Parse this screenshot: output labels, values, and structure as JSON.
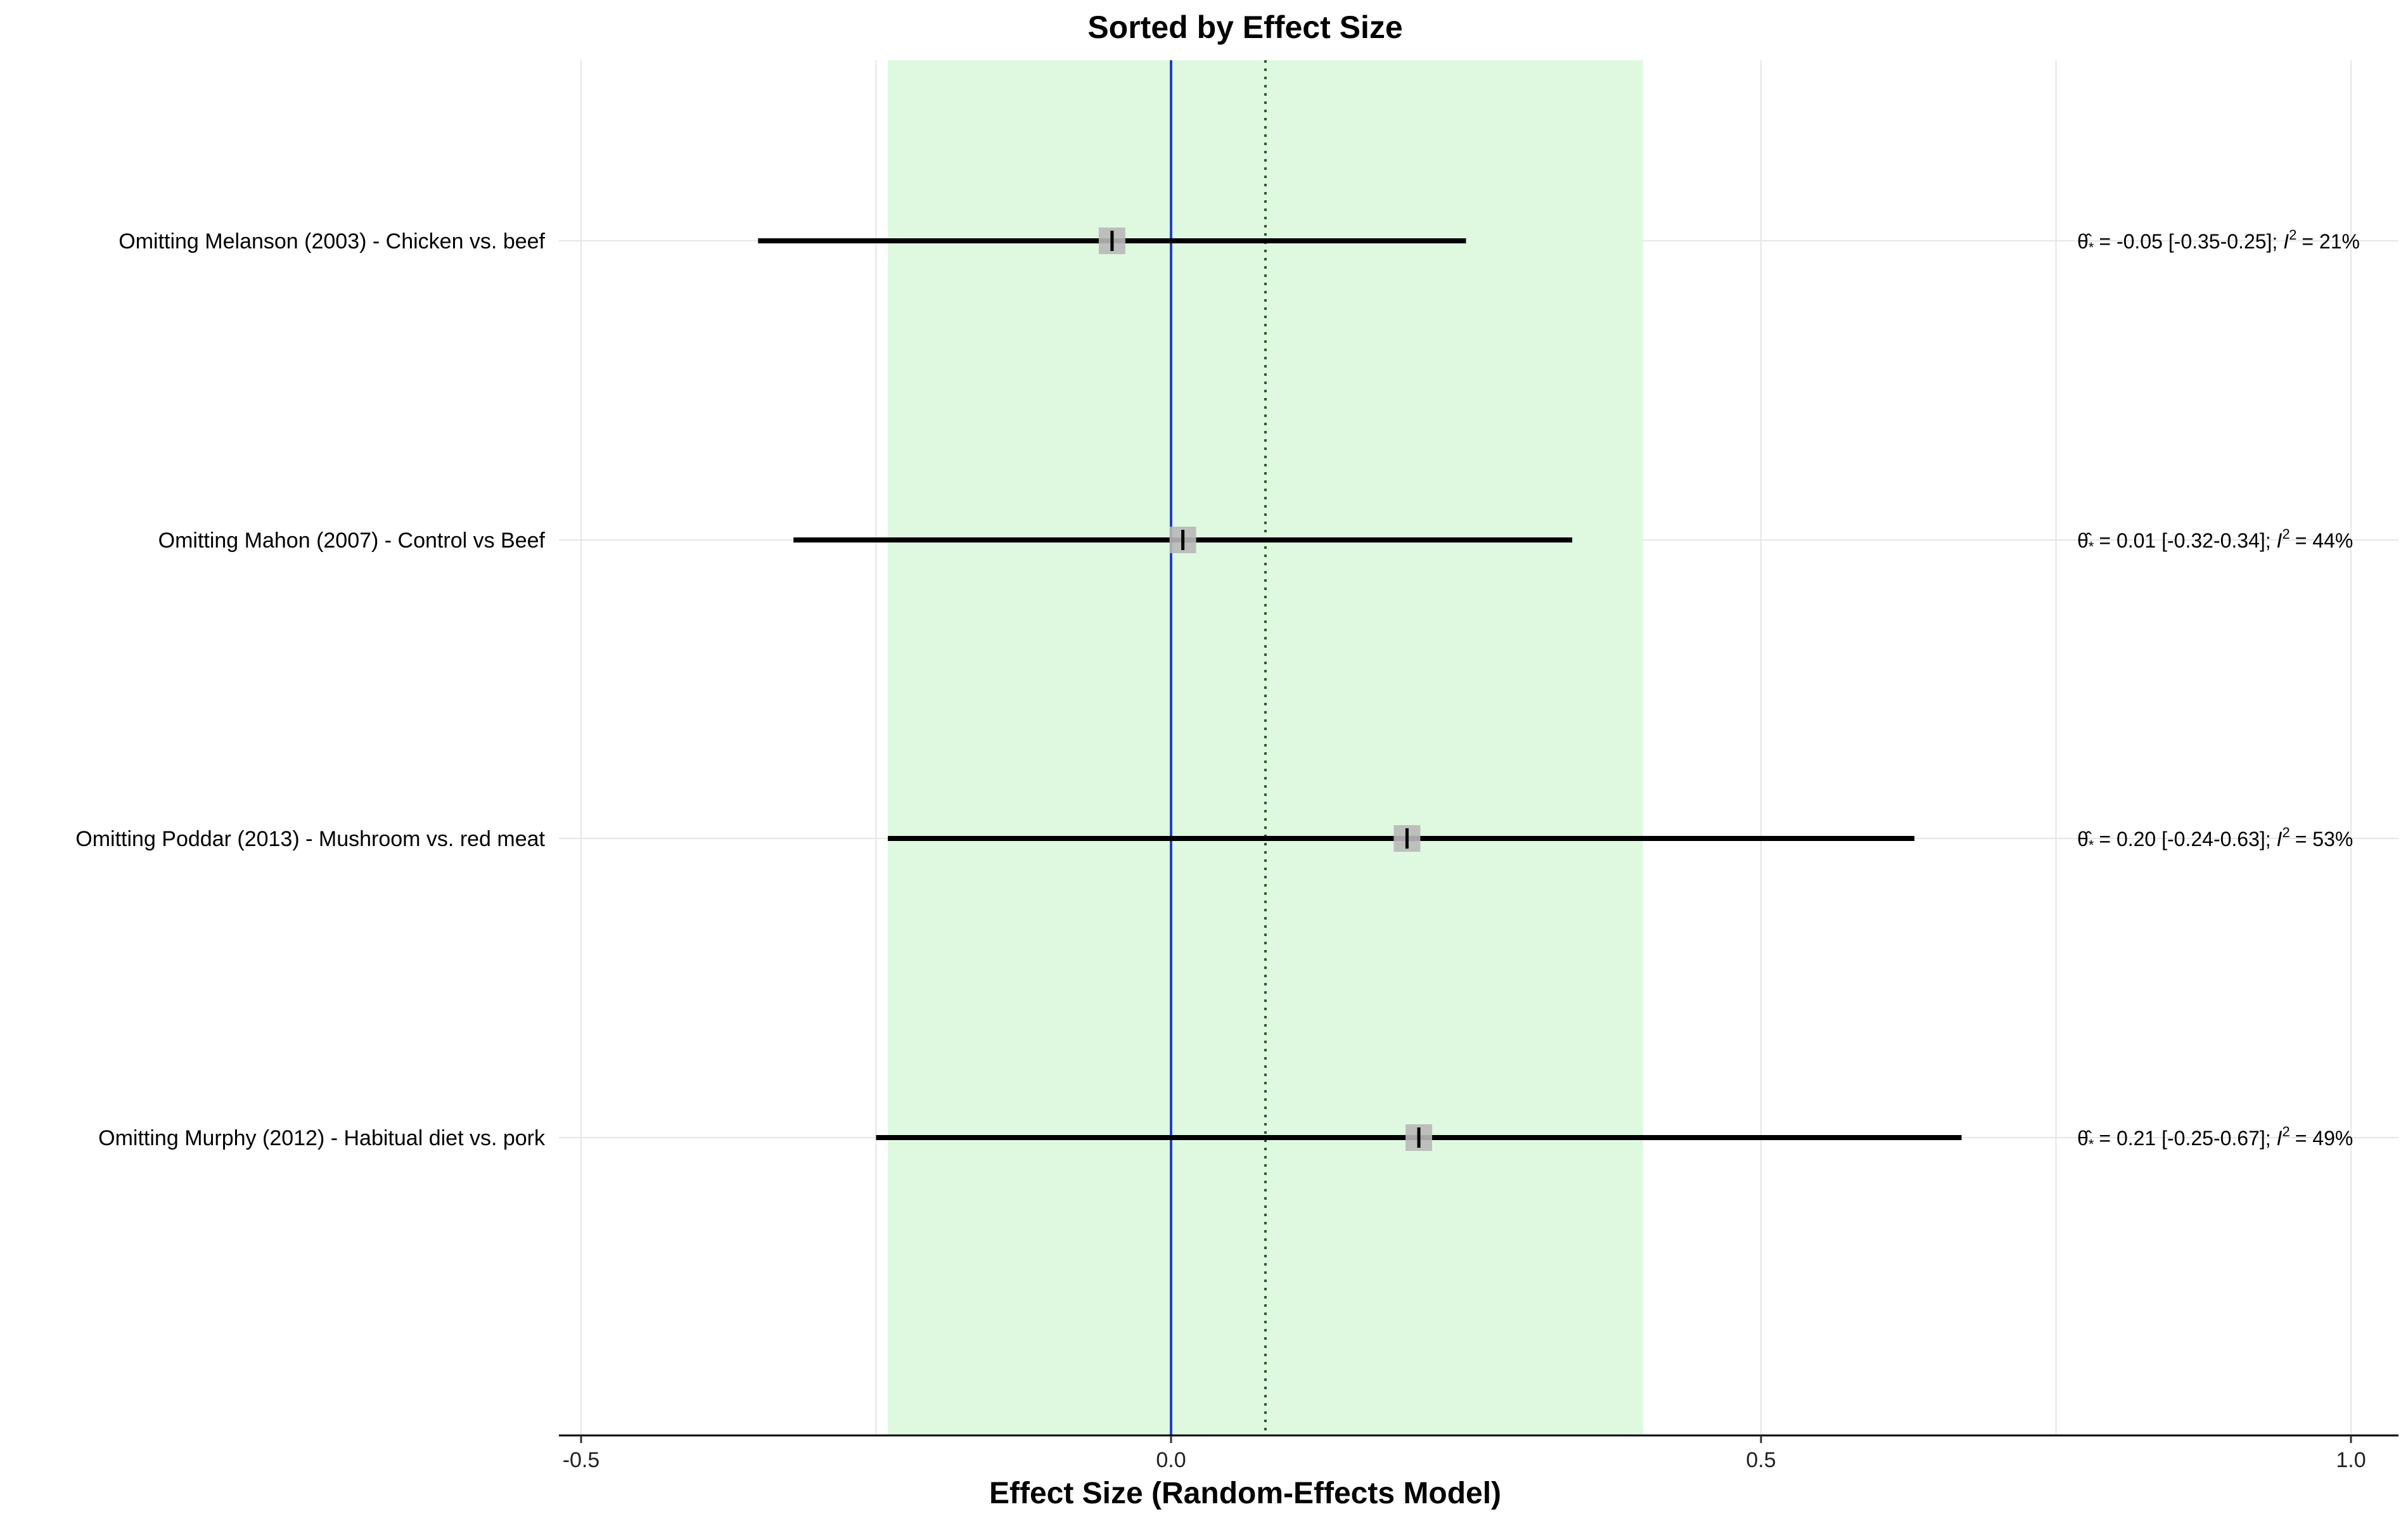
{
  "chart_data": {
    "type": "forest",
    "title": "Sorted by Effect Size",
    "xlabel": "Effect Size (Random-Effects Model)",
    "xlim": [
      -0.52,
      1.04
    ],
    "x_ticks": [
      -0.5,
      0.0,
      0.5,
      1.0
    ],
    "x_tick_labels": [
      "-0.5",
      "0.0",
      "0.5",
      "1.0"
    ],
    "grid": true,
    "pooled_interval": {
      "low": -0.24,
      "high": 0.4,
      "color": "#dff9e0"
    },
    "pooled_estimate": 0.08,
    "null_line": 0.0,
    "null_line_color": "#1f3fcc",
    "rows": [
      {
        "label": "Omitting Melanson (2003) - Chicken vs. beef",
        "estimate": -0.05,
        "low": -0.35,
        "high": 0.25,
        "annotation": "= -0.05 [-0.35-0.25]; ",
        "i2": "= 21%"
      },
      {
        "label": "Omitting Mahon (2007) - Control vs Beef",
        "estimate": 0.01,
        "low": -0.32,
        "high": 0.34,
        "annotation": "= 0.01 [-0.32-0.34]; ",
        "i2": "= 44%"
      },
      {
        "label": "Omitting Poddar (2013) - Mushroom vs. red meat",
        "estimate": 0.2,
        "low": -0.24,
        "high": 0.63,
        "annotation": "= 0.20 [-0.24-0.63]; ",
        "i2": "= 53%"
      },
      {
        "label": "Omitting Murphy (2012) - Habitual diet vs. pork",
        "estimate": 0.21,
        "low": -0.25,
        "high": 0.67,
        "annotation": "= 0.21 [-0.25-0.67]; ",
        "i2": "= 49%"
      }
    ]
  }
}
